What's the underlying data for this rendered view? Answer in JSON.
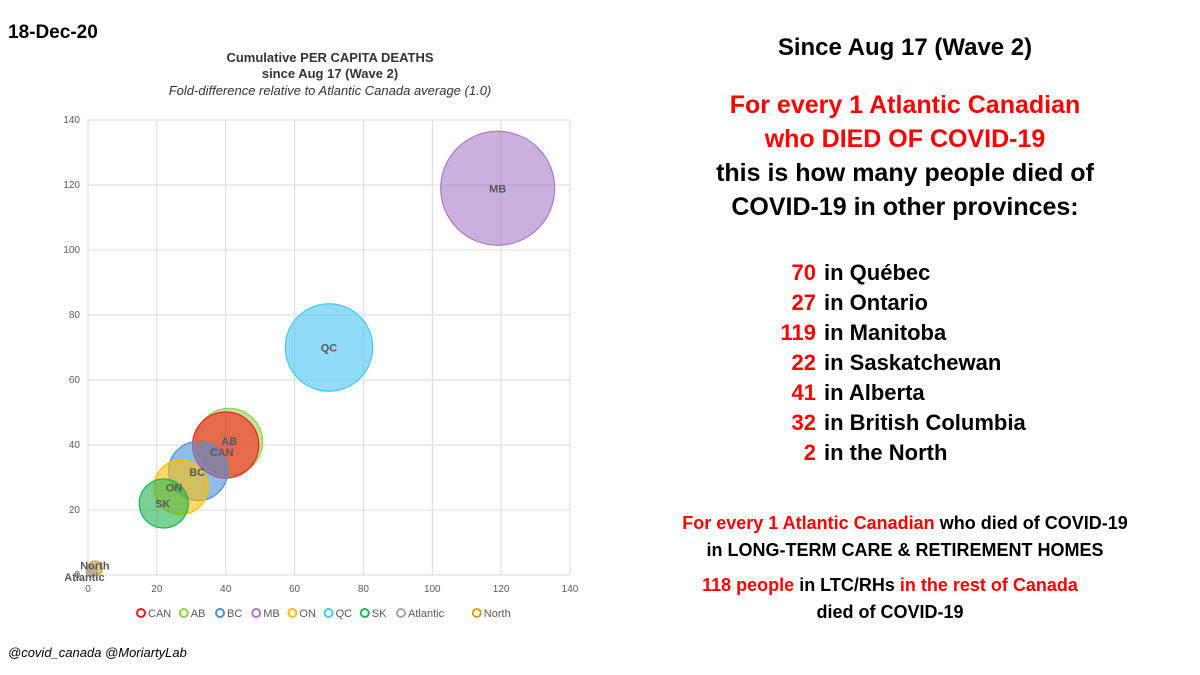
{
  "date": "18-Dec-20",
  "credit": "@covid_canada @MoriartyLab",
  "chart_data": {
    "type": "scatter",
    "title": "Cumulative PER CAPITA DEATHS",
    "title_line2": "since Aug 17 (Wave 2)",
    "subtitle": "Fold-difference relative to Atlantic Canada average (1.0)",
    "xlim": [
      0,
      140
    ],
    "ylim": [
      0,
      140
    ],
    "x_ticks": [
      0,
      20,
      40,
      60,
      80,
      100,
      120,
      140
    ],
    "y_ticks": [
      0,
      20,
      40,
      60,
      80,
      100,
      120,
      140
    ],
    "grid": true,
    "legend_position": "bottom",
    "series": [
      {
        "name": "CAN",
        "label": "CAN",
        "x": 40,
        "y": 40,
        "size": 40,
        "color": "#ff1a1a"
      },
      {
        "name": "AB",
        "label": "AB",
        "x": 41,
        "y": 41,
        "size": 41,
        "color": "#92d050"
      },
      {
        "name": "BC",
        "label": "BC",
        "x": 32,
        "y": 32,
        "size": 32,
        "color": "#4a90d9"
      },
      {
        "name": "MB",
        "label": "MB",
        "x": 119,
        "y": 119,
        "size": 119,
        "color": "#a77bc8"
      },
      {
        "name": "ON",
        "label": "ON",
        "x": 27,
        "y": 27,
        "size": 27,
        "color": "#ffc000"
      },
      {
        "name": "QC",
        "label": "QC",
        "x": 70,
        "y": 70,
        "size": 70,
        "color": "#47c6f5"
      },
      {
        "name": "SK",
        "label": "SK",
        "x": 22,
        "y": 22,
        "size": 22,
        "color": "#21b350"
      },
      {
        "name": "Atlantic",
        "label": "Atlantic",
        "x": 1,
        "y": 1,
        "size": 1,
        "color": "#a5a5a5"
      },
      {
        "name": "North",
        "label": "North",
        "x": 2,
        "y": 2,
        "size": 2,
        "color": "#c9a228"
      }
    ]
  },
  "right": {
    "since": "Since Aug 17 (Wave 2)",
    "line1": "For every 1 Atlantic Canadian",
    "line2": "who DIED OF COVID-19",
    "line3": "this is how many people died of",
    "line4": "COVID-19 in other provinces:",
    "provinces": [
      {
        "num": "70",
        "text": "in Québec"
      },
      {
        "num": "27",
        "text": "in Ontario"
      },
      {
        "num": "119",
        "text": "in Manitoba"
      },
      {
        "num": "22",
        "text": "in Saskatchewan"
      },
      {
        "num": "41",
        "text": "in Alberta"
      },
      {
        "num": "32",
        "text": "in British Columbia"
      },
      {
        "num": "2",
        "text": "in the North"
      }
    ],
    "ltc_a_red": "For every 1 Atlantic Canadian",
    "ltc_a_black": "who died of COVID-19",
    "ltc_b": "in LONG-TERM CARE & RETIREMENT HOMES",
    "ltc_c_num": "118",
    "ltc_c_red1": "people",
    "ltc_c_black1": "in LTC/RHs",
    "ltc_c_red2": "in the rest of Canada",
    "ltc_d": "died of COVID-19"
  }
}
